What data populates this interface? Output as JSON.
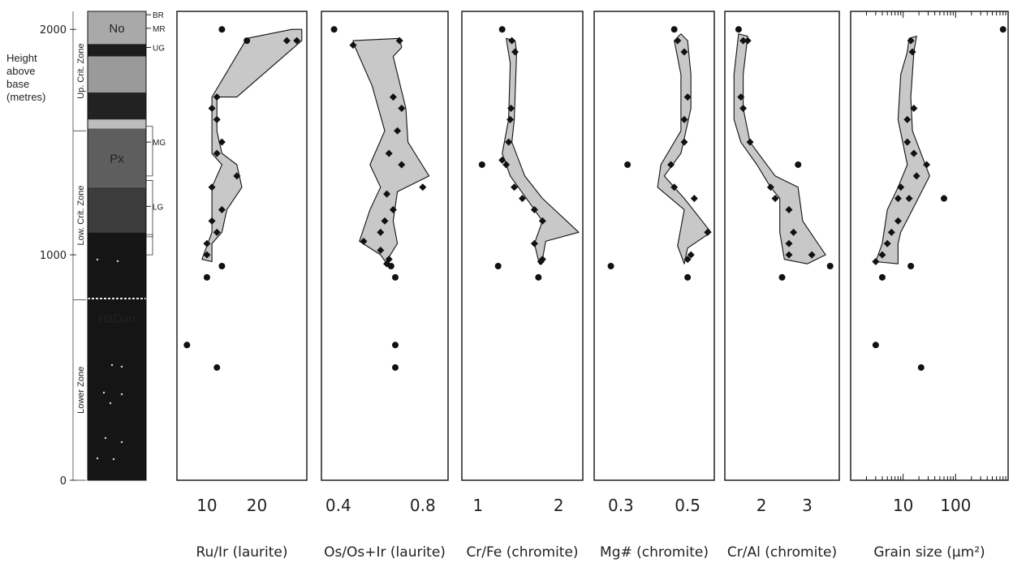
{
  "strat_column": {
    "y_axis": {
      "label_lines": [
        "Height",
        "above",
        "base",
        "(metres)"
      ],
      "ticks": [
        {
          "value": 2000,
          "label": "2000"
        },
        {
          "value": 1000,
          "label": "1000"
        },
        {
          "value": 0,
          "label": "0"
        }
      ],
      "range": [
        0,
        2080
      ]
    },
    "zones": [
      {
        "name": "Up. Crit. Zone",
        "from": 1550,
        "to": 2080
      },
      {
        "name": "Low. Crit. Zone",
        "from": 800,
        "to": 1550
      },
      {
        "name": "Lower Zone",
        "from": 0,
        "to": 800
      }
    ],
    "units": [
      {
        "label": "No",
        "from": 1935,
        "to": 2080,
        "color": "#a9a9a9"
      },
      {
        "label": "",
        "from": 1880,
        "to": 1935,
        "color": "#1c1c1c"
      },
      {
        "label": "",
        "from": 1720,
        "to": 1880,
        "color": "#9a9a9a"
      },
      {
        "label": "",
        "from": 1600,
        "to": 1720,
        "color": "#222222"
      },
      {
        "label": "",
        "from": 1560,
        "to": 1600,
        "color": "#bdbdbd"
      },
      {
        "label": "Px",
        "from": 1300,
        "to": 1560,
        "color": "#5e5e5e"
      },
      {
        "label": "",
        "from": 1100,
        "to": 1300,
        "color": "#3c3c3c"
      },
      {
        "label": "HzDun",
        "from": 0,
        "to": 1100,
        "color": "#151515"
      }
    ],
    "reefs": [
      {
        "label": "BR",
        "height": 2065
      },
      {
        "label": "MR",
        "height": 2005
      },
      {
        "label": "UG",
        "height": 1920
      },
      {
        "label": "MG",
        "height": 1500
      },
      {
        "label": "LG",
        "height": 1215
      }
    ]
  },
  "chart_data": [
    {
      "type": "scatter",
      "xlabel": "Ru/Ir (laurite)",
      "x_scale": "linear",
      "xlim": [
        4,
        30
      ],
      "ylim": [
        0,
        2080
      ],
      "xticks": [
        {
          "value": 10,
          "label": "10"
        },
        {
          "value": 20,
          "label": "20"
        }
      ],
      "envelope": [
        [
          27,
          2000
        ],
        [
          29,
          2000
        ],
        [
          29,
          1950
        ],
        [
          16,
          1700
        ],
        [
          12,
          1700
        ],
        [
          12,
          1550
        ],
        [
          13,
          1450
        ],
        [
          16,
          1400
        ],
        [
          17,
          1300
        ],
        [
          14,
          1200
        ],
        [
          13,
          1100
        ],
        [
          11,
          1050
        ],
        [
          11,
          970
        ],
        [
          9,
          980
        ],
        [
          11,
          1100
        ],
        [
          11,
          1200
        ],
        [
          11,
          1300
        ],
        [
          13,
          1400
        ],
        [
          11,
          1450
        ],
        [
          11,
          1600
        ],
        [
          11,
          1700
        ],
        [
          18,
          1960
        ]
      ],
      "envelope_color": "#c8c8c8",
      "diamonds": [
        [
          28,
          1950
        ],
        [
          26,
          1950
        ],
        [
          12,
          1700
        ],
        [
          11,
          1650
        ],
        [
          12,
          1600
        ],
        [
          13,
          1500
        ],
        [
          12,
          1450
        ],
        [
          11,
          1300
        ],
        [
          16,
          1350
        ],
        [
          13,
          1200
        ],
        [
          11,
          1150
        ],
        [
          12,
          1100
        ],
        [
          10,
          1050
        ],
        [
          10,
          1000
        ]
      ],
      "dots": [
        [
          18,
          1950
        ],
        [
          13,
          2000
        ],
        [
          13,
          950
        ],
        [
          10,
          900
        ],
        [
          6,
          600
        ],
        [
          12,
          500
        ]
      ]
    },
    {
      "type": "scatter",
      "xlabel": "Os/Os+Ir (laurite)",
      "x_scale": "linear",
      "xlim": [
        0.32,
        0.92
      ],
      "ylim": [
        0,
        2080
      ],
      "xticks": [
        {
          "value": 0.4,
          "label": "0.4"
        },
        {
          "value": 0.8,
          "label": "0.8"
        }
      ],
      "envelope": [
        [
          0.47,
          1950
        ],
        [
          0.69,
          1960
        ],
        [
          0.7,
          1920
        ],
        [
          0.66,
          1880
        ],
        [
          0.72,
          1650
        ],
        [
          0.73,
          1500
        ],
        [
          0.83,
          1350
        ],
        [
          0.68,
          1280
        ],
        [
          0.66,
          1150
        ],
        [
          0.68,
          1050
        ],
        [
          0.64,
          990
        ],
        [
          0.63,
          960
        ],
        [
          0.6,
          1000
        ],
        [
          0.5,
          1060
        ],
        [
          0.55,
          1200
        ],
        [
          0.6,
          1300
        ],
        [
          0.55,
          1400
        ],
        [
          0.62,
          1550
        ],
        [
          0.56,
          1750
        ],
        [
          0.48,
          1920
        ]
      ],
      "envelope_color": "#c8c8c8",
      "diamonds": [
        [
          0.69,
          1950
        ],
        [
          0.47,
          1930
        ],
        [
          0.66,
          1700
        ],
        [
          0.7,
          1650
        ],
        [
          0.68,
          1550
        ],
        [
          0.64,
          1450
        ],
        [
          0.7,
          1400
        ],
        [
          0.8,
          1300
        ],
        [
          0.63,
          1270
        ],
        [
          0.66,
          1200
        ],
        [
          0.62,
          1150
        ],
        [
          0.6,
          1100
        ],
        [
          0.52,
          1060
        ],
        [
          0.6,
          1020
        ],
        [
          0.64,
          980
        ],
        [
          0.63,
          960
        ]
      ],
      "dots": [
        [
          0.38,
          2000
        ],
        [
          0.65,
          950
        ],
        [
          0.67,
          900
        ],
        [
          0.67,
          600
        ],
        [
          0.67,
          500
        ]
      ]
    },
    {
      "type": "scatter",
      "xlabel": "Cr/Fe (chromite)",
      "x_scale": "linear",
      "xlim": [
        0.8,
        2.3
      ],
      "ylim": [
        0,
        2080
      ],
      "xticks": [
        {
          "value": 1,
          "label": "1"
        },
        {
          "value": 2,
          "label": "2"
        }
      ],
      "envelope": [
        [
          1.35,
          1960
        ],
        [
          1.46,
          1950
        ],
        [
          1.48,
          1900
        ],
        [
          1.45,
          1600
        ],
        [
          1.42,
          1500
        ],
        [
          1.58,
          1350
        ],
        [
          1.8,
          1250
        ],
        [
          2.25,
          1100
        ],
        [
          1.84,
          1060
        ],
        [
          1.8,
          980
        ],
        [
          1.76,
          960
        ],
        [
          1.7,
          1050
        ],
        [
          1.8,
          1150
        ],
        [
          1.6,
          1250
        ],
        [
          1.4,
          1350
        ],
        [
          1.3,
          1450
        ],
        [
          1.38,
          1600
        ],
        [
          1.4,
          1850
        ]
      ],
      "envelope_color": "#c8c8c8",
      "diamonds": [
        [
          1.42,
          1950
        ],
        [
          1.46,
          1900
        ],
        [
          1.41,
          1650
        ],
        [
          1.4,
          1600
        ],
        [
          1.38,
          1500
        ],
        [
          1.35,
          1400
        ],
        [
          1.3,
          1420
        ],
        [
          1.45,
          1300
        ],
        [
          1.55,
          1250
        ],
        [
          1.7,
          1200
        ],
        [
          1.8,
          1150
        ],
        [
          1.7,
          1050
        ],
        [
          1.8,
          980
        ],
        [
          1.78,
          970
        ]
      ],
      "dots": [
        [
          1.3,
          2000
        ],
        [
          1.05,
          1400
        ],
        [
          1.25,
          950
        ],
        [
          1.75,
          900
        ]
      ]
    },
    {
      "type": "scatter",
      "xlabel": "Mg# (chromite)",
      "x_scale": "linear",
      "xlim": [
        0.22,
        0.58
      ],
      "ylim": [
        0,
        2080
      ],
      "xticks": [
        {
          "value": 0.3,
          "label": "0.3"
        },
        {
          "value": 0.5,
          "label": "0.5"
        }
      ],
      "envelope": [
        [
          0.48,
          1980
        ],
        [
          0.5,
          1950
        ],
        [
          0.51,
          1800
        ],
        [
          0.51,
          1650
        ],
        [
          0.48,
          1450
        ],
        [
          0.43,
          1350
        ],
        [
          0.49,
          1250
        ],
        [
          0.57,
          1100
        ],
        [
          0.5,
          1030
        ],
        [
          0.49,
          960
        ],
        [
          0.47,
          1040
        ],
        [
          0.49,
          1200
        ],
        [
          0.41,
          1300
        ],
        [
          0.42,
          1400
        ],
        [
          0.48,
          1550
        ],
        [
          0.48,
          1800
        ],
        [
          0.46,
          1950
        ]
      ],
      "envelope_color": "#c8c8c8",
      "diamonds": [
        [
          0.47,
          1950
        ],
        [
          0.49,
          1900
        ],
        [
          0.5,
          1700
        ],
        [
          0.49,
          1600
        ],
        [
          0.49,
          1500
        ],
        [
          0.45,
          1400
        ],
        [
          0.46,
          1300
        ],
        [
          0.52,
          1250
        ],
        [
          0.56,
          1100
        ],
        [
          0.51,
          1000
        ],
        [
          0.5,
          980
        ]
      ],
      "dots": [
        [
          0.46,
          2000
        ],
        [
          0.32,
          1400
        ],
        [
          0.27,
          950
        ],
        [
          0.5,
          900
        ]
      ]
    },
    {
      "type": "scatter",
      "xlabel": "Cr/Al (chromite)",
      "x_scale": "linear",
      "xlim": [
        1.2,
        3.7
      ],
      "ylim": [
        0,
        2080
      ],
      "xticks": [
        {
          "value": 2,
          "label": "2"
        },
        {
          "value": 3,
          "label": "3"
        }
      ],
      "envelope": [
        [
          1.5,
          1980
        ],
        [
          1.7,
          1970
        ],
        [
          1.6,
          1800
        ],
        [
          1.6,
          1650
        ],
        [
          1.75,
          1500
        ],
        [
          2.3,
          1350
        ],
        [
          2.8,
          1300
        ],
        [
          2.9,
          1150
        ],
        [
          3.4,
          1000
        ],
        [
          3.0,
          960
        ],
        [
          2.5,
          980
        ],
        [
          2.4,
          1100
        ],
        [
          2.4,
          1250
        ],
        [
          2.2,
          1300
        ],
        [
          1.9,
          1400
        ],
        [
          1.55,
          1500
        ],
        [
          1.4,
          1600
        ],
        [
          1.4,
          1800
        ]
      ],
      "envelope_color": "#c8c8c8",
      "diamonds": [
        [
          1.6,
          1950
        ],
        [
          1.7,
          1950
        ],
        [
          1.55,
          1700
        ],
        [
          1.6,
          1650
        ],
        [
          1.75,
          1500
        ],
        [
          2.2,
          1300
        ],
        [
          2.3,
          1250
        ],
        [
          2.6,
          1200
        ],
        [
          2.7,
          1100
        ],
        [
          2.6,
          1050
        ],
        [
          2.6,
          1000
        ],
        [
          3.1,
          1000
        ]
      ],
      "dots": [
        [
          1.5,
          2000
        ],
        [
          2.8,
          1400
        ],
        [
          2.45,
          900
        ],
        [
          3.5,
          950
        ]
      ]
    },
    {
      "type": "scatter",
      "xlabel": "Grain size (µm²)",
      "x_scale": "log",
      "xlim": [
        1,
        1000
      ],
      "ylim": [
        0,
        2080
      ],
      "xticks": [
        {
          "value": 10,
          "label": "10"
        },
        {
          "value": 100,
          "label": "100"
        }
      ],
      "envelope": [
        [
          13,
          1960
        ],
        [
          18,
          1970
        ],
        [
          16,
          1900
        ],
        [
          14,
          1700
        ],
        [
          15,
          1550
        ],
        [
          32,
          1350
        ],
        [
          15,
          1200
        ],
        [
          9,
          1100
        ],
        [
          8,
          1050
        ],
        [
          8,
          960
        ],
        [
          3,
          970
        ],
        [
          4,
          1050
        ],
        [
          5,
          1200
        ],
        [
          8,
          1300
        ],
        [
          12,
          1400
        ],
        [
          8,
          1600
        ],
        [
          9,
          1800
        ],
        [
          12,
          1900
        ]
      ],
      "envelope_color": "#c8c8c8",
      "diamonds": [
        [
          14,
          1950
        ],
        [
          15,
          1900
        ],
        [
          16,
          1650
        ],
        [
          12,
          1600
        ],
        [
          12,
          1500
        ],
        [
          16,
          1450
        ],
        [
          28,
          1400
        ],
        [
          18,
          1350
        ],
        [
          9,
          1300
        ],
        [
          8,
          1250
        ],
        [
          13,
          1250
        ],
        [
          8,
          1150
        ],
        [
          6,
          1100
        ],
        [
          5,
          1050
        ],
        [
          4,
          1000
        ],
        [
          3,
          970
        ]
      ],
      "dots": [
        [
          800,
          2000
        ],
        [
          60,
          1250
        ],
        [
          14,
          950
        ],
        [
          4,
          900
        ],
        [
          3,
          600
        ],
        [
          22,
          500
        ]
      ]
    }
  ]
}
